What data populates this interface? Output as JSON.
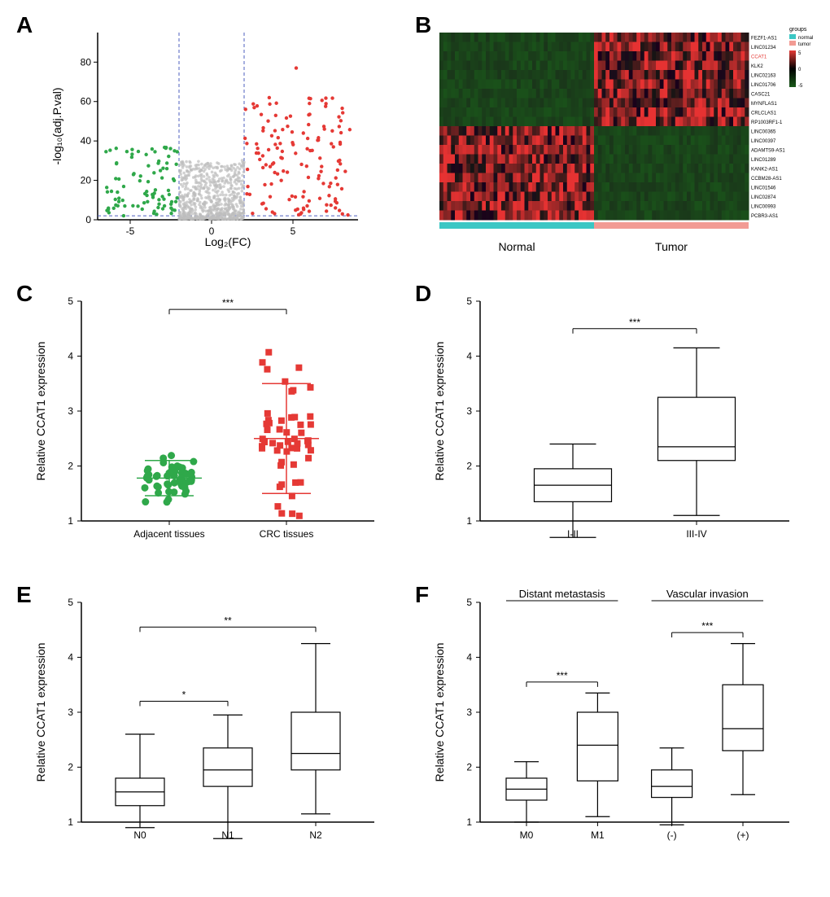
{
  "panels": {
    "A": {
      "label": "A",
      "xlabel": "Log₂(FC)",
      "ylabel": "-log₁₀(adj.P.val)",
      "xlim": [
        -7,
        9
      ],
      "ylim": [
        0,
        95
      ],
      "xticks": [
        -5,
        0,
        5
      ],
      "yticks": [
        0,
        20,
        40,
        60,
        80
      ],
      "vline1": -2,
      "vline2": 2,
      "hline": 2,
      "colors": {
        "down": "#2fa84a",
        "ns": "#bdbdbd",
        "up": "#e53935"
      },
      "background": "#ffffff"
    },
    "B": {
      "label": "B",
      "group_labels": [
        "Normal",
        "Tumor"
      ],
      "group_colors": {
        "normal": "#3cc7c4",
        "tumor": "#f29b94"
      },
      "genes": [
        "FEZF1-AS1",
        "LINC01234",
        "CCAT1",
        "KLK2",
        "LINC02163",
        "LINC01706",
        "CASC21",
        "MYNFLAS1",
        "CRLCLAS1",
        "RP1003RF1-1",
        "LINC00365",
        "LINC00397",
        "ADAMTS9-AS1",
        "LINC01289",
        "KANK2-AS1",
        "CCBM28-AS1",
        "LINC01546",
        "LINC02874",
        "LINC00993",
        "PCBR3-AS1"
      ],
      "highlight_gene": "CCAT1",
      "legend_title": "groups",
      "scale_min": -5,
      "scale_max": 5,
      "scale_colors": [
        "#1a5a1a",
        "#000000",
        "#e53935"
      ],
      "row1_colors_normal": "dark",
      "row1_colors_tumor": "red"
    },
    "C": {
      "label": "C",
      "ylabel": "Relative CCAT1 expression",
      "ylim": [
        1,
        5
      ],
      "yticks": [
        1,
        2,
        3,
        4,
        5
      ],
      "categories": [
        "Adjacent tissues",
        "CRC tissues"
      ],
      "sig": "***",
      "series": [
        {
          "name": "adjacent",
          "color": "#2fa84a",
          "marker": "circle",
          "mean": 1.78,
          "sd": 0.32,
          "n": 52
        },
        {
          "name": "crc",
          "color": "#e53935",
          "marker": "square",
          "mean": 2.5,
          "sd": 1.0,
          "n": 52
        }
      ]
    },
    "D": {
      "label": "D",
      "ylabel": "Relative CCAT1 expression",
      "ylim": [
        1,
        5
      ],
      "yticks": [
        1,
        2,
        3,
        4,
        5
      ],
      "categories": [
        "I-II",
        "III-IV"
      ],
      "sig": "***",
      "boxes": [
        {
          "min": 0.7,
          "q1": 1.35,
          "med": 1.65,
          "q3": 1.95,
          "max": 2.4
        },
        {
          "min": 1.1,
          "q1": 2.1,
          "med": 2.35,
          "q3": 3.25,
          "max": 4.15
        }
      ]
    },
    "E": {
      "label": "E",
      "ylabel": "Relative CCAT1 expression",
      "ylim": [
        1,
        5
      ],
      "yticks": [
        1,
        2,
        3,
        4,
        5
      ],
      "categories": [
        "N0",
        "N1",
        "N2"
      ],
      "sigs": [
        {
          "from": 0,
          "to": 1,
          "label": "*",
          "y": 3.2
        },
        {
          "from": 0,
          "to": 2,
          "label": "**",
          "y": 4.55
        }
      ],
      "boxes": [
        {
          "min": 0.9,
          "q1": 1.3,
          "med": 1.55,
          "q3": 1.8,
          "max": 2.6
        },
        {
          "min": 0.7,
          "q1": 1.65,
          "med": 1.95,
          "q3": 2.35,
          "max": 2.95
        },
        {
          "min": 1.15,
          "q1": 1.95,
          "med": 2.25,
          "q3": 3.0,
          "max": 4.25
        }
      ]
    },
    "F": {
      "label": "F",
      "ylabel": "Relative CCAT1 expression",
      "ylim": [
        1,
        5
      ],
      "yticks": [
        1,
        2,
        3,
        4,
        5
      ],
      "group_headers": [
        "Distant metastasis",
        "Vascular invasion"
      ],
      "categories": [
        "M0",
        "M1",
        "(-)",
        "(+)"
      ],
      "sigs": [
        {
          "from": 0,
          "to": 1,
          "label": "***",
          "y": 3.55
        },
        {
          "from": 2,
          "to": 3,
          "label": "***",
          "y": 4.45
        }
      ],
      "boxes": [
        {
          "min": 1.0,
          "q1": 1.4,
          "med": 1.6,
          "q3": 1.8,
          "max": 2.1
        },
        {
          "min": 1.1,
          "q1": 1.75,
          "med": 2.4,
          "q3": 3.0,
          "max": 3.35
        },
        {
          "min": 0.95,
          "q1": 1.45,
          "med": 1.65,
          "q3": 1.95,
          "max": 2.35
        },
        {
          "min": 1.5,
          "q1": 2.3,
          "med": 2.7,
          "q3": 3.5,
          "max": 4.25
        }
      ]
    }
  }
}
